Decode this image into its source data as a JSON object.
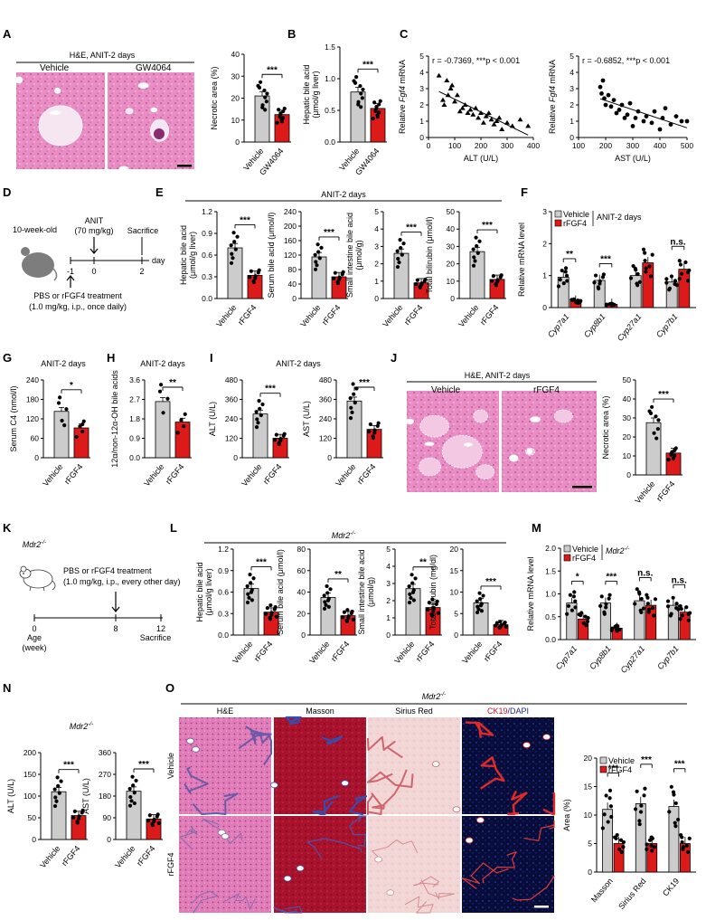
{
  "panels": [
    "A",
    "B",
    "C",
    "D",
    "E",
    "F",
    "G",
    "H",
    "I",
    "J",
    "K",
    "L",
    "M",
    "N",
    "O"
  ],
  "sig": {
    "s1": "*",
    "s2": "**",
    "s3": "***",
    "ns": "n.s."
  },
  "groups": {
    "veh": "Vehicle",
    "gw": "GW4064",
    "rf": "rFGF4"
  },
  "colors": {
    "vehicle": "#cccccc",
    "treat": "#dd1a1a",
    "he": "#e58ac0",
    "masson": "#a4102a",
    "sirius": "#f0d4d4",
    "ck19bg": "#0a0f3c"
  },
  "a": {
    "title": "H&E, ANIT-2 days",
    "ylabel": "Necrotic area (%)",
    "yticks": [
      "0",
      "10",
      "20",
      "30",
      "40"
    ]
  },
  "b": {
    "ylabel": "Hepatic bile acid (μmol/g liver)",
    "yticks": [
      "0.0",
      "0.5",
      "1.0",
      "1.5"
    ]
  },
  "c": {
    "left": {
      "stat": "r = -0.7369, ***p < 0.001",
      "xlabel": "ALT (U/L)",
      "ylabel": "Relative Fgf4 mRNA",
      "xticks": [
        "0",
        "100",
        "200",
        "300",
        "400"
      ],
      "yticks": [
        "0",
        "1",
        "2",
        "3",
        "4",
        "5"
      ]
    },
    "right": {
      "stat": "r = -0.6852, ***p < 0.001",
      "xlabel": "AST (U/L)",
      "ylabel": "Relative Fgf4 mRNA",
      "xticks": [
        "100",
        "200",
        "300",
        "400",
        "500"
      ],
      "yticks": [
        "0",
        "1",
        "2",
        "3",
        "4",
        "5"
      ]
    }
  },
  "d": {
    "age": "10-week-old",
    "anit": "ANIT",
    "dose": "(70 mg/kg)",
    "sacrifice": "Sacrifice",
    "day": "day",
    "t1": "-1",
    "t2": "0",
    "t3": "2",
    "treat1": "PBS or rFGF4 treatment",
    "treat2": "(1.0 mg/kg, i.p., once daily)"
  },
  "e": {
    "title": "ANIT-2 days",
    "p1": {
      "ylabel": "Hepatic bile acid (μmol/g liver)",
      "yticks": [
        "0.0",
        "0.3",
        "0.6",
        "0.9",
        "1.2"
      ]
    },
    "p2": {
      "ylabel": "Serum bile acid (μmol/l)",
      "yticks": [
        "0",
        "40",
        "80",
        "120",
        "160",
        "200",
        "240"
      ]
    },
    "p3": {
      "ylabel": "Small intestine bile acid (μmol/g)",
      "yticks": [
        "0",
        "1",
        "2",
        "3",
        "4",
        "5"
      ]
    },
    "p4": {
      "ylabel": "Total bilirubin (μmol/l)",
      "yticks": [
        "0",
        "10",
        "20",
        "30",
        "40",
        "50"
      ]
    }
  },
  "f": {
    "title": "ANIT-2 days",
    "ylabel": "Relative mRNA level",
    "yticks": [
      "0",
      "1",
      "2",
      "3"
    ],
    "genes": [
      "Cyp7a1",
      "Cyp8b1",
      "Cyp27a1",
      "Cyp7b1"
    ]
  },
  "g": {
    "title": "ANIT-2 days",
    "ylabel": "Serum C4 (nmol/l)",
    "yticks": [
      "0",
      "60",
      "120",
      "180",
      "240"
    ]
  },
  "h": {
    "title": "ANIT-2 days",
    "ylabel": "12α/non-12α-OH bile acids",
    "yticks": [
      "0.0",
      "0.9",
      "1.8",
      "2.7",
      "3.6"
    ]
  },
  "i": {
    "title": "ANIT-2 days",
    "p1": {
      "ylabel": "ALT (U/L)",
      "yticks": [
        "0",
        "120",
        "240",
        "360",
        "480"
      ]
    },
    "p2": {
      "ylabel": "AST (U/L)",
      "yticks": [
        "0",
        "120",
        "240",
        "360",
        "480"
      ]
    }
  },
  "j": {
    "title": "H&E, ANIT-2 days",
    "ylabel": "Necrotic area (%)",
    "yticks": [
      "0",
      "10",
      "20",
      "30",
      "40",
      "50"
    ]
  },
  "k": {
    "strain": "Mdr2",
    "sup": "-/-",
    "treat1": "PBS or rFGF4 treatment",
    "treat2": "(1.0 mg/kg, i.p., every other day)",
    "age": "Age",
    "week": "(week)",
    "sacrifice": "Sacrifice",
    "t1": "0",
    "t2": "8",
    "t3": "12"
  },
  "l": {
    "title": "Mdr2",
    "sup": "-/-",
    "p1": {
      "ylabel": "Hepatic bile acid (μmol/g liver)",
      "yticks": [
        "0.0",
        "0.3",
        "0.6",
        "0.9",
        "1.2"
      ]
    },
    "p2": {
      "ylabel": "Serum bile acid (μmol/l)",
      "yticks": [
        "0",
        "20",
        "40",
        "60",
        "80"
      ]
    },
    "p3": {
      "ylabel": "Small intestine bile acid (μmol/g)",
      "yticks": [
        "0",
        "1",
        "2",
        "3",
        "4",
        "5"
      ]
    },
    "p4": {
      "ylabel": "Total bilirubin (mg/dl)",
      "yticks": [
        "0",
        "5",
        "10",
        "15",
        "20"
      ]
    }
  },
  "m": {
    "title": "Mdr2",
    "sup": "-/-",
    "ylabel": "Relative mRNA level",
    "yticks": [
      "0.0",
      "0.5",
      "1.0",
      "1.5",
      "2.0"
    ],
    "genes": [
      "Cyp7a1",
      "Cyp8b1",
      "Cyp27a1",
      "Cyp7b1"
    ]
  },
  "n": {
    "title": "Mdr2",
    "sup": "-/-",
    "p1": {
      "ylabel": "ALT (U/L)",
      "yticks": [
        "0",
        "50",
        "100",
        "150",
        "200"
      ]
    },
    "p2": {
      "ylabel": "AST (U/L)",
      "yticks": [
        "0",
        "90",
        "180",
        "270",
        "360"
      ]
    }
  },
  "o": {
    "title": "Mdr2",
    "sup": "-/-",
    "cols": [
      "H&E",
      "Masson",
      "Sirius Red"
    ],
    "ck": "CK19",
    "dapi": "/DAPI",
    "rows": [
      "Vehicle",
      "rFGF4"
    ],
    "ylabel": "Area (%)",
    "yticks": [
      "0",
      "5",
      "10",
      "15",
      "20"
    ],
    "cats": [
      "Masson",
      "Sirius Red",
      "CK19"
    ]
  },
  "chart_data": [
    {
      "panel": "A",
      "type": "bar",
      "categories": [
        "Vehicle",
        "GW4064"
      ],
      "values": [
        21,
        12.5
      ],
      "ylim": [
        0,
        40
      ],
      "sig": "***"
    },
    {
      "panel": "B",
      "type": "bar",
      "categories": [
        "Vehicle",
        "GW4064"
      ],
      "values": [
        0.79,
        0.53
      ],
      "ylim": [
        0,
        1.5
      ],
      "sig": "***"
    },
    {
      "panel": "C-left",
      "type": "scatter",
      "xlabel": "ALT (U/L)",
      "ylabel": "Relative Fgf4 mRNA",
      "xlim": [
        0,
        400
      ],
      "ylim": [
        0,
        5
      ],
      "stat": "r = -0.7369, ***p < 0.001",
      "x": [
        40,
        55,
        60,
        70,
        75,
        85,
        90,
        100,
        110,
        120,
        130,
        140,
        150,
        160,
        170,
        180,
        190,
        200,
        210,
        220,
        230,
        240,
        250,
        260,
        270,
        280,
        300,
        320,
        350,
        380
      ],
      "y": [
        3.8,
        2.3,
        2.0,
        3.5,
        2.6,
        3.0,
        3.2,
        2.2,
        2.6,
        1.6,
        1.8,
        2.0,
        1.5,
        1.7,
        1.4,
        1.8,
        1.2,
        1.5,
        0.9,
        1.3,
        1.5,
        1.1,
        0.8,
        1.0,
        1.2,
        0.5,
        0.9,
        0.7,
        1.1,
        0.7
      ]
    },
    {
      "panel": "C-right",
      "type": "scatter",
      "xlabel": "AST (U/L)",
      "ylabel": "Relative Fgf4 mRNA",
      "xlim": [
        100,
        500
      ],
      "ylim": [
        0,
        5
      ],
      "stat": "r = -0.6852, ***p < 0.001",
      "x": [
        180,
        185,
        190,
        195,
        200,
        210,
        220,
        230,
        240,
        250,
        260,
        270,
        280,
        290,
        300,
        310,
        320,
        340,
        350,
        370,
        380,
        400,
        410,
        420,
        440,
        460,
        480,
        500
      ],
      "y": [
        3.1,
        2.7,
        3.5,
        2.4,
        2.0,
        2.6,
        1.9,
        2.3,
        1.5,
        1.7,
        2.0,
        1.2,
        1.4,
        2.1,
        0.7,
        1.2,
        1.6,
        1.0,
        1.3,
        0.9,
        1.6,
        0.5,
        1.2,
        1.8,
        0.8,
        1.3,
        1.0,
        1.0
      ]
    },
    {
      "panel": "E1",
      "type": "bar",
      "categories": [
        "Vehicle",
        "rFGF4"
      ],
      "values": [
        0.7,
        0.32
      ],
      "ylim": [
        0,
        1.2
      ],
      "sig": "***"
    },
    {
      "panel": "E2",
      "type": "bar",
      "categories": [
        "Vehicle",
        "rFGF4"
      ],
      "values": [
        115,
        60
      ],
      "ylim": [
        0,
        240
      ],
      "sig": "***"
    },
    {
      "panel": "E3",
      "type": "bar",
      "categories": [
        "Vehicle",
        "rFGF4"
      ],
      "values": [
        2.6,
        0.9
      ],
      "ylim": [
        0,
        5
      ],
      "sig": "***"
    },
    {
      "panel": "E4",
      "type": "bar",
      "categories": [
        "Vehicle",
        "rFGF4"
      ],
      "values": [
        27,
        11
      ],
      "ylim": [
        0,
        50
      ],
      "sig": "***"
    },
    {
      "panel": "F",
      "type": "bar",
      "categories": [
        "Cyp7a1",
        "Cyp8b1",
        "Cyp27a1",
        "Cyp7b1"
      ],
      "series": [
        {
          "name": "Vehicle",
          "values": [
            0.95,
            0.85,
            1.0,
            0.8
          ]
        },
        {
          "name": "rFGF4",
          "values": [
            0.2,
            0.1,
            1.4,
            1.2
          ]
        }
      ],
      "ylim": [
        0,
        3
      ],
      "sig": [
        "**",
        "***",
        "",
        "n.s."
      ]
    },
    {
      "panel": "G",
      "type": "bar",
      "categories": [
        "Vehicle",
        "rFGF4"
      ],
      "values": [
        143,
        92
      ],
      "ylim": [
        0,
        240
      ],
      "sig": "*"
    },
    {
      "panel": "H",
      "type": "bar",
      "categories": [
        "Vehicle",
        "rFGF4"
      ],
      "values": [
        2.6,
        1.65
      ],
      "ylim": [
        0,
        3.6
      ],
      "sig": "**"
    },
    {
      "panel": "I1",
      "type": "bar",
      "categories": [
        "Vehicle",
        "rFGF4"
      ],
      "values": [
        270,
        120
      ],
      "ylim": [
        0,
        480
      ],
      "sig": "***"
    },
    {
      "panel": "I2",
      "type": "bar",
      "categories": [
        "Vehicle",
        "rFGF4"
      ],
      "values": [
        350,
        175
      ],
      "ylim": [
        0,
        480
      ],
      "sig": "***"
    },
    {
      "panel": "J",
      "type": "bar",
      "categories": [
        "Vehicle",
        "rFGF4"
      ],
      "values": [
        27.5,
        11.5
      ],
      "ylim": [
        0,
        50
      ],
      "sig": "***"
    },
    {
      "panel": "L1",
      "type": "bar",
      "categories": [
        "Vehicle",
        "rFGF4"
      ],
      "values": [
        0.65,
        0.32
      ],
      "ylim": [
        0,
        1.2
      ],
      "sig": "***"
    },
    {
      "panel": "L2",
      "type": "bar",
      "categories": [
        "Vehicle",
        "rFGF4"
      ],
      "values": [
        35,
        18
      ],
      "ylim": [
        0,
        80
      ],
      "sig": "**"
    },
    {
      "panel": "L3",
      "type": "bar",
      "categories": [
        "Vehicle",
        "rFGF4"
      ],
      "values": [
        2.7,
        1.6
      ],
      "ylim": [
        0,
        5
      ],
      "sig": "**"
    },
    {
      "panel": "L4",
      "type": "bar",
      "categories": [
        "Vehicle",
        "rFGF4"
      ],
      "values": [
        7.5,
        2.4
      ],
      "ylim": [
        0,
        20
      ],
      "sig": "***"
    },
    {
      "panel": "M",
      "type": "bar",
      "categories": [
        "Cyp7a1",
        "Cyp8b1",
        "Cyp27a1",
        "Cyp7b1"
      ],
      "series": [
        {
          "name": "Vehicle",
          "values": [
            0.8,
            0.8,
            0.85,
            0.75
          ]
        },
        {
          "name": "rFGF4",
          "values": [
            0.45,
            0.25,
            0.75,
            0.6
          ]
        }
      ],
      "ylim": [
        0,
        2
      ],
      "sig": [
        "*",
        "***",
        "n.s.",
        "n.s."
      ]
    },
    {
      "panel": "N1",
      "type": "bar",
      "categories": [
        "Vehicle",
        "rFGF4"
      ],
      "values": [
        110,
        55
      ],
      "ylim": [
        0,
        200
      ],
      "sig": "***"
    },
    {
      "panel": "N2",
      "type": "bar",
      "categories": [
        "Vehicle",
        "rFGF4"
      ],
      "values": [
        200,
        85
      ],
      "ylim": [
        0,
        360
      ],
      "sig": "***"
    },
    {
      "panel": "O",
      "type": "bar",
      "categories": [
        "Masson",
        "Sirius Red",
        "CK19"
      ],
      "series": [
        {
          "name": "Vehicle",
          "values": [
            11,
            12,
            11.5
          ]
        },
        {
          "name": "rFGF4",
          "values": [
            5,
            5,
            5
          ]
        }
      ],
      "ylim": [
        0,
        20
      ],
      "sig": [
        "***",
        "***",
        "***"
      ]
    }
  ]
}
